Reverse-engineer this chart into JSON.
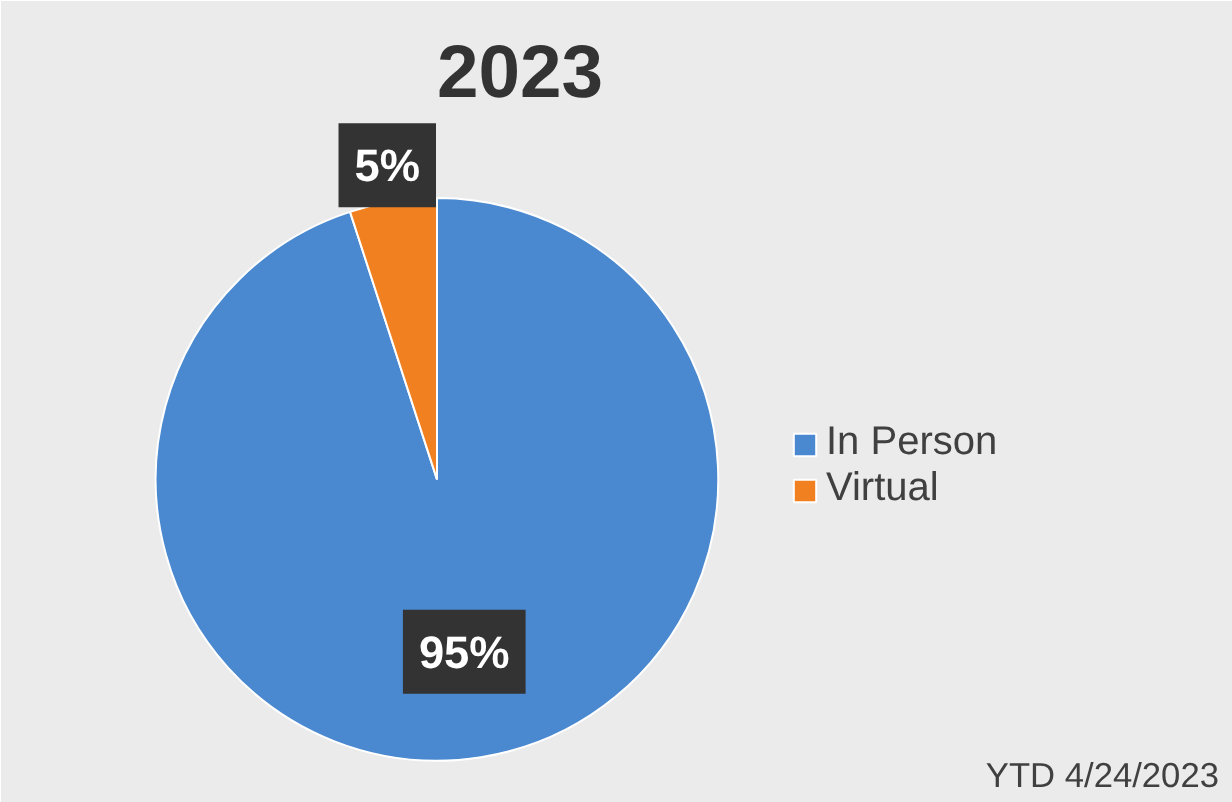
{
  "chart_data": {
    "type": "pie",
    "title": "2023",
    "categories": [
      "In Person",
      "Virtual"
    ],
    "values": [
      95,
      5
    ],
    "colors": [
      "#4a89d0",
      "#f08020"
    ],
    "value_labels": [
      "95%",
      "5%"
    ],
    "legend": "right",
    "annotations": [
      "YTD 4/24/2023"
    ]
  }
}
